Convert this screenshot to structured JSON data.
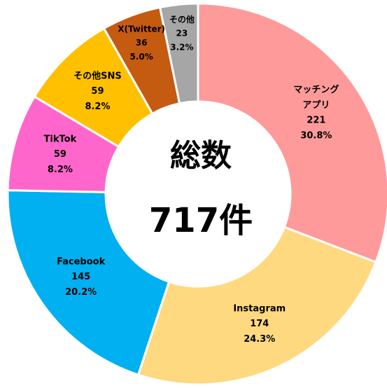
{
  "chart_data": {
    "type": "donut",
    "categories": [
      "マッチング\nアプリ",
      "Instagram",
      "Facebook",
      "TikTok",
      "その他SNS",
      "X(Twitter)",
      "その他"
    ],
    "values": [
      221,
      174,
      145,
      59,
      59,
      36,
      23
    ],
    "percentages": [
      30.8,
      24.3,
      20.2,
      8.2,
      8.2,
      5.0,
      3.2
    ],
    "percentage_labels": [
      "30.8%",
      "24.3%",
      "20.2%",
      "8.2%",
      "8.2%",
      "5.0%",
      "3.2%"
    ],
    "colors": [
      "#ff9a9a",
      "#ffd97f",
      "#00b0f0",
      "#ff66cc",
      "#ffc000",
      "#c55a11",
      "#a6a6a6"
    ],
    "center_title": "総数",
    "center_total": "717件"
  }
}
